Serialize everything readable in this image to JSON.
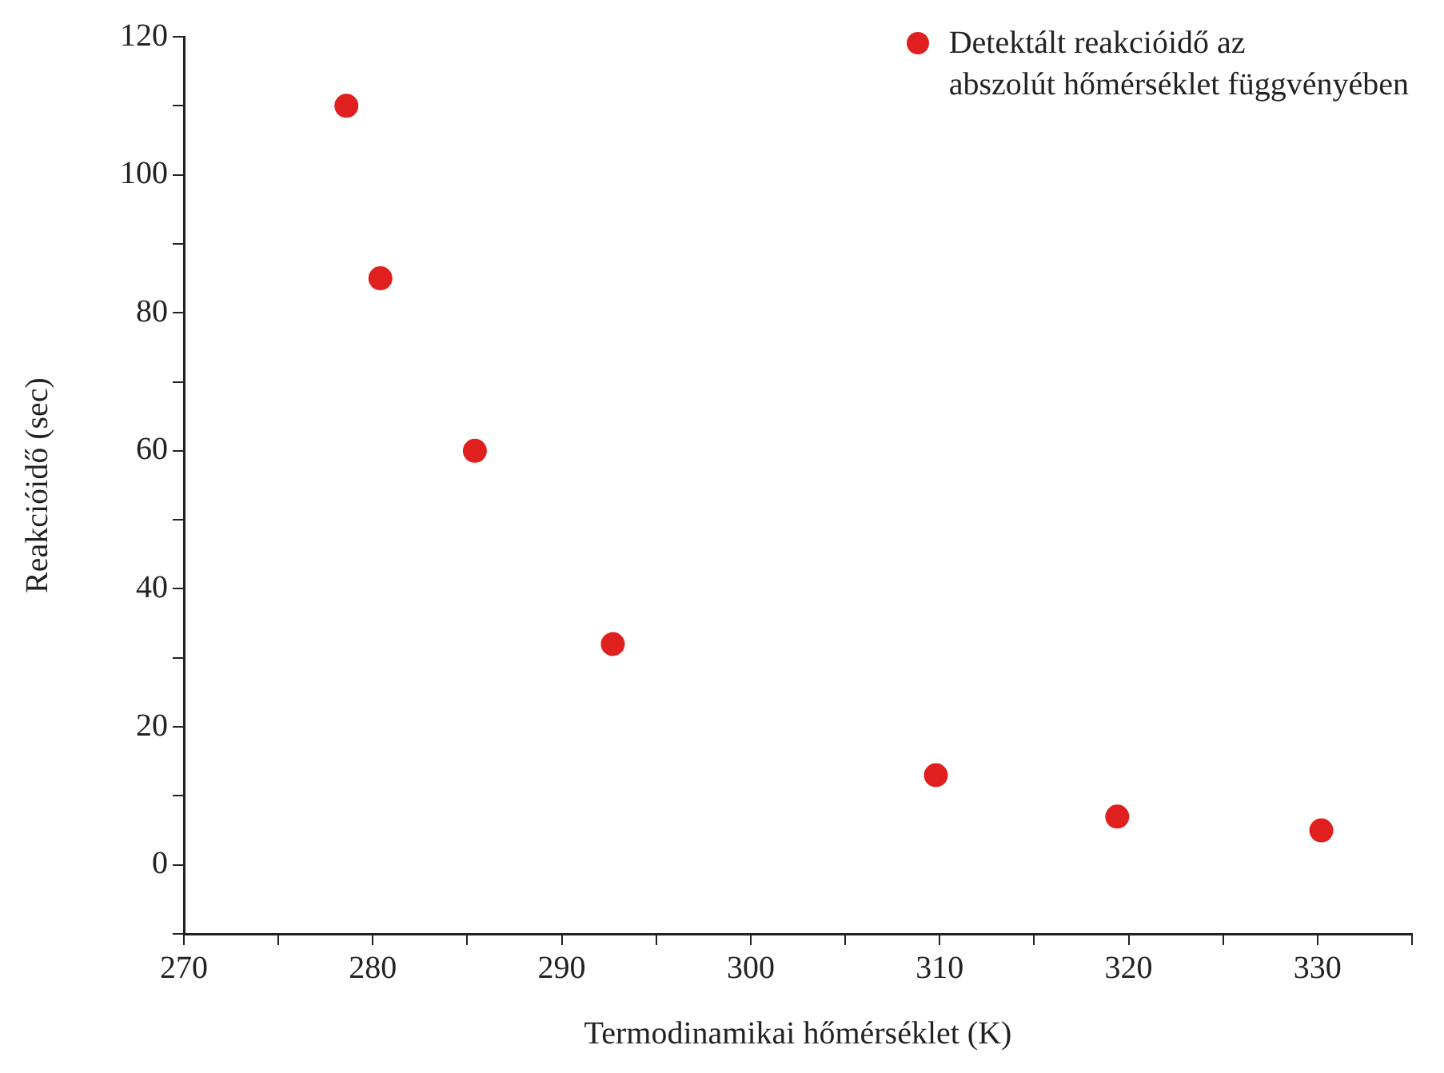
{
  "chart_data": {
    "type": "scatter",
    "xlabel": "Termodinamikai hőmérséklet (K)",
    "ylabel": "Reakcióidő (sec)",
    "x": [
      278.6,
      280.4,
      285.4,
      292.7,
      309.8,
      319.4,
      330.2
    ],
    "series": [
      {
        "name": "Detektált reakcióidő az\nabszolút hőmérséklet függvényében",
        "color": "#e0201e",
        "values": [
          110,
          85,
          60,
          32,
          13,
          7,
          5
        ]
      }
    ],
    "xlim": [
      270,
      335
    ],
    "xticks": [
      270,
      {
        "value": 275,
        "label": null
      },
      280,
      {
        "value": 285,
        "label": null
      },
      290,
      {
        "value": 295,
        "label": null
      },
      300,
      {
        "value": 305,
        "label": null
      },
      310,
      {
        "value": 315,
        "label": null
      },
      320,
      {
        "value": 325,
        "label": null
      },
      330,
      {
        "value": 335,
        "label": null
      }
    ],
    "ylim": [
      -10,
      120
    ],
    "yticks": [
      {
        "value": -10,
        "label": null
      },
      0,
      {
        "value": 10,
        "label": null
      },
      20,
      {
        "value": 30,
        "label": null
      },
      40,
      {
        "value": 50,
        "label": null
      },
      60,
      {
        "value": 70,
        "label": null
      },
      80,
      {
        "value": 90,
        "label": null
      },
      100,
      {
        "value": 110,
        "label": null
      },
      120
    ],
    "legend": "top right",
    "marker": "circle"
  }
}
